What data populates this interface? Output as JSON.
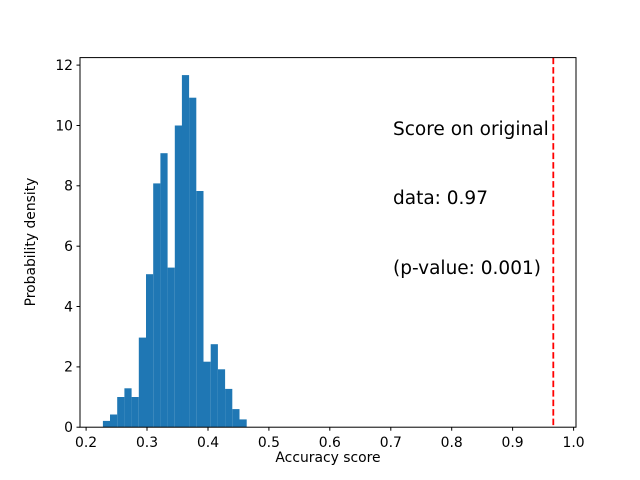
{
  "figure": {
    "background": "#ffffff"
  },
  "chart_data": {
    "type": "bar",
    "subtype": "histogram-density",
    "title": "",
    "xlabel": "Accuracy score",
    "ylabel": "Probability density",
    "annotation_lines": [
      "Score on original",
      "data: 0.97",
      "(p-value: 0.001)"
    ],
    "original_score": 0.97,
    "p_value": 0.001,
    "grid": false,
    "legend_position": "none",
    "xlim": [
      0.19,
      1.004
    ],
    "ylim": [
      0,
      12.25
    ],
    "xticks": [
      0.2,
      0.3,
      0.4,
      0.5,
      0.6,
      0.7,
      0.8,
      0.9,
      1.0
    ],
    "xtick_labels": [
      "0.2",
      "0.3",
      "0.4",
      "0.5",
      "0.6",
      "0.7",
      "0.8",
      "0.9",
      "1.0"
    ],
    "yticks": [
      0,
      2,
      4,
      6,
      8,
      10,
      12
    ],
    "ytick_labels": [
      "0",
      "2",
      "4",
      "6",
      "8",
      "10",
      "12"
    ],
    "bin_start": 0.2275,
    "bin_width": 0.0118,
    "densities": [
      0.21,
      0.42,
      1.0,
      1.29,
      1.0,
      2.97,
      5.07,
      8.08,
      9.08,
      5.29,
      10.0,
      11.67,
      10.92,
      7.83,
      2.17,
      2.75,
      1.92,
      1.27,
      0.6,
      0.26
    ],
    "bar_color": "#1f77b4",
    "axis_color": "#000000",
    "vline": {
      "x": 0.9667,
      "color": "#ff0000",
      "style": "dashed"
    }
  }
}
